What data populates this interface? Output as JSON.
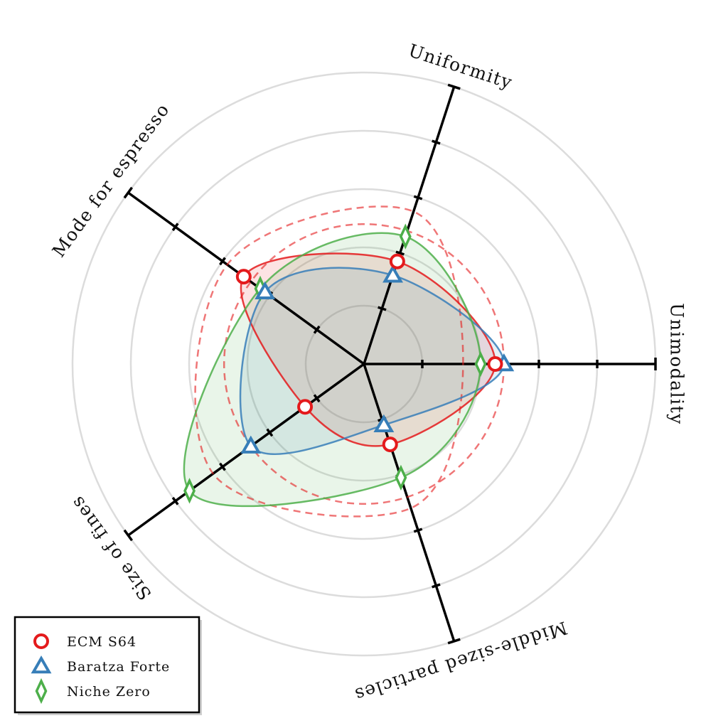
{
  "chart_data": {
    "type": "radar",
    "title": "",
    "axes": [
      {
        "label": "Unimodality"
      },
      {
        "label": "Uniformity"
      },
      {
        "label": "Mode for espresso"
      },
      {
        "label": "Size of fines"
      },
      {
        "label": "Middle-sized particles"
      }
    ],
    "rmax": 5,
    "grid_circles": [
      1,
      2,
      3,
      4,
      5
    ],
    "series": [
      {
        "name": "ECM S64",
        "marker": "circle",
        "color": "#e41a1c",
        "values": [
          2.25,
          1.85,
          2.55,
          1.25,
          1.45
        ]
      },
      {
        "name": "Baratza Forte",
        "marker": "triangle",
        "color": "#377eb8",
        "values": [
          2.4,
          1.6,
          2.1,
          2.4,
          1.1
        ]
      },
      {
        "name": "Niche Zero",
        "marker": "diamond",
        "color": "#4daf4a",
        "values": [
          2.0,
          2.3,
          2.2,
          3.7,
          2.05
        ]
      }
    ],
    "reference_circle": {
      "radius": 2.4,
      "color": "#e41a1c",
      "style": "dashed"
    },
    "reference_shape": {
      "values": [
        1.7,
        2.75,
        2.9,
        3.2,
        2.6
      ],
      "color": "#e41a1c",
      "style": "dashed"
    },
    "legend": {
      "position": "bottom-left",
      "entries": [
        "ECM S64",
        "Baratza Forte",
        "Niche Zero"
      ]
    },
    "grid": true
  }
}
